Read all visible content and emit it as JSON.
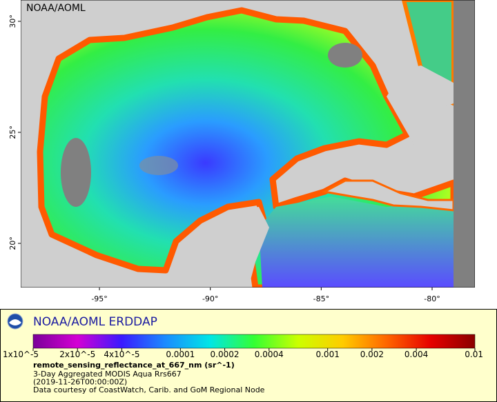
{
  "map": {
    "label": "NOAA/AOML",
    "xlim": [
      -98.55,
      -78.07
    ],
    "ylim": [
      18.01,
      30.96
    ],
    "xticks": [
      {
        "value": -95,
        "label": "-95°"
      },
      {
        "value": -90,
        "label": "-90°"
      },
      {
        "value": -85,
        "label": "-85°"
      },
      {
        "value": -80,
        "label": "-80°"
      }
    ],
    "yticks": [
      {
        "value": 20,
        "label": "20°"
      },
      {
        "value": 25,
        "label": "25°"
      },
      {
        "value": 30,
        "label": "30°"
      }
    ]
  },
  "legend": {
    "title": "NOAA/AOML ERDDAP",
    "colorbar": {
      "range": [
        1e-05,
        0.01
      ],
      "log": true,
      "colors": [
        "#7a0099",
        "#d400d4",
        "#3a1aff",
        "#1a8cff",
        "#00e6e6",
        "#33ff33",
        "#ccff00",
        "#ffcc00",
        "#ff6600",
        "#e60000",
        "#8b0000"
      ],
      "ticks": [
        {
          "value": 1e-05,
          "label": "1x10^-5"
        },
        {
          "value": 2e-05,
          "label": "2x10^-5"
        },
        {
          "value": 4e-05,
          "label": "4x10^-5"
        },
        0.0001,
        0.0002,
        0.0004,
        0.001,
        0.002,
        0.004,
        0.01
      ]
    },
    "variable": "remote_sensing_reflectance_at_667_nm (sr^-1)",
    "lines": [
      "3-Day Aggregated MODIS Aqua Rrs667",
      "(2019-11-26T00:00:00Z)",
      "Data courtesy of CoastWatch, Carib. and GoM Regional Node"
    ]
  }
}
